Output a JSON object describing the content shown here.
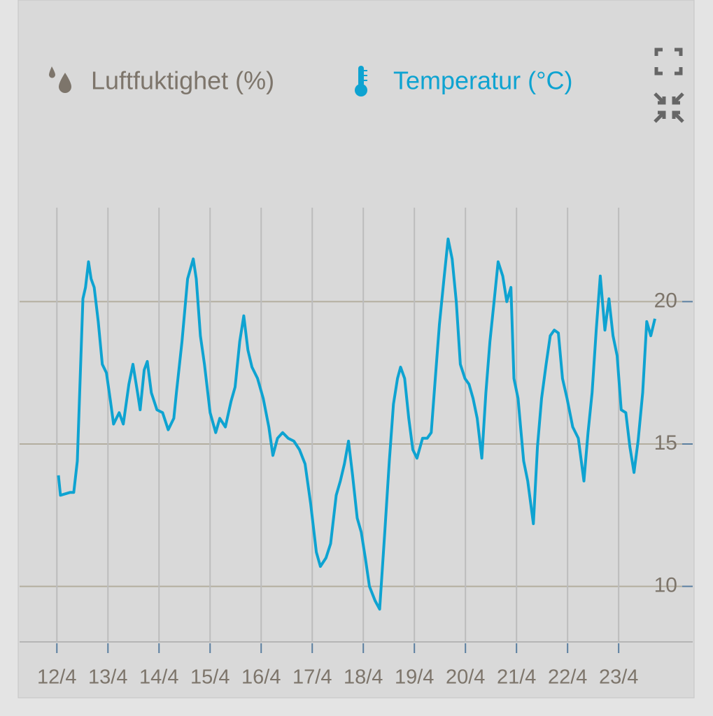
{
  "chart_data": {
    "type": "line",
    "xlim": [
      -0.73,
      12.45
    ],
    "ylim": [
      8.05,
      23.3
    ],
    "yticks": [
      10,
      15,
      20
    ],
    "xticks": [
      {
        "value": 0,
        "label": "12/4"
      },
      {
        "value": 1,
        "label": "13/4"
      },
      {
        "value": 2,
        "label": "14/4"
      },
      {
        "value": 3,
        "label": "15/4"
      },
      {
        "value": 4,
        "label": "16/4"
      },
      {
        "value": 5,
        "label": "17/4"
      },
      {
        "value": 6,
        "label": "18/4"
      },
      {
        "value": 7,
        "label": "19/4"
      },
      {
        "value": 8,
        "label": "20/4"
      },
      {
        "value": 9,
        "label": "21/4"
      },
      {
        "value": 10,
        "label": "22/4"
      },
      {
        "value": 11,
        "label": "23/4"
      }
    ],
    "grid": true,
    "x": [
      0.03,
      0.07,
      0.26,
      0.33,
      0.4,
      0.51,
      0.56,
      0.62,
      0.67,
      0.73,
      0.81,
      0.89,
      0.97,
      1.05,
      1.11,
      1.22,
      1.3,
      1.41,
      1.49,
      1.58,
      1.63,
      1.71,
      1.77,
      1.85,
      1.96,
      2.07,
      2.18,
      2.29,
      2.34,
      2.45,
      2.56,
      2.67,
      2.73,
      2.81,
      2.89,
      3.0,
      3.11,
      3.19,
      3.3,
      3.41,
      3.49,
      3.58,
      3.66,
      3.74,
      3.82,
      3.93,
      4.04,
      4.15,
      4.23,
      4.32,
      4.42,
      4.53,
      4.64,
      4.75,
      4.86,
      4.97,
      5.08,
      5.16,
      5.27,
      5.36,
      5.47,
      5.55,
      5.63,
      5.71,
      5.79,
      5.88,
      5.96,
      6.04,
      6.12,
      6.23,
      6.32,
      6.42,
      6.51,
      6.59,
      6.67,
      6.73,
      6.81,
      6.89,
      6.97,
      7.05,
      7.16,
      7.25,
      7.33,
      7.41,
      7.49,
      7.58,
      7.66,
      7.74,
      7.82,
      7.9,
      7.99,
      8.07,
      8.15,
      8.23,
      8.32,
      8.4,
      8.48,
      8.56,
      8.64,
      8.73,
      8.81,
      8.89,
      8.95,
      9.03,
      9.08,
      9.14,
      9.22,
      9.33,
      9.41,
      9.49,
      9.58,
      9.66,
      9.74,
      9.82,
      9.9,
      9.99,
      10.1,
      10.21,
      10.32,
      10.4,
      10.48,
      10.56,
      10.64,
      10.73,
      10.81,
      10.89,
      10.97,
      11.05,
      11.14,
      11.22,
      11.3,
      11.38,
      11.47,
      11.55,
      11.63,
      11.71
    ],
    "series": [
      {
        "name": "Luftfuktighet (%)",
        "color": "#7d756b",
        "visible": false
      },
      {
        "name": "Temperatur (°C)",
        "color": "#0ea3d1",
        "visible": true,
        "values": [
          13.9,
          13.2,
          13.3,
          13.3,
          14.4,
          20.1,
          20.5,
          21.4,
          20.8,
          20.5,
          19.3,
          17.8,
          17.5,
          16.5,
          15.7,
          16.1,
          15.7,
          17.1,
          17.8,
          16.8,
          16.2,
          17.6,
          17.9,
          16.8,
          16.2,
          16.1,
          15.5,
          15.9,
          16.8,
          18.6,
          20.8,
          21.5,
          20.8,
          18.8,
          17.8,
          16.1,
          15.4,
          15.9,
          15.6,
          16.5,
          17.0,
          18.6,
          19.5,
          18.3,
          17.7,
          17.3,
          16.6,
          15.6,
          14.6,
          15.2,
          15.4,
          15.2,
          15.1,
          14.8,
          14.3,
          12.9,
          11.2,
          10.7,
          11.0,
          11.5,
          13.2,
          13.7,
          14.3,
          15.1,
          13.9,
          12.4,
          11.9,
          11.0,
          10.0,
          9.5,
          9.2,
          11.9,
          14.4,
          16.4,
          17.3,
          17.7,
          17.3,
          15.9,
          14.8,
          14.5,
          15.2,
          15.2,
          15.4,
          17.3,
          19.2,
          20.8,
          22.2,
          21.5,
          20.0,
          17.8,
          17.3,
          17.1,
          16.6,
          15.9,
          14.5,
          16.8,
          18.6,
          20.0,
          21.4,
          20.9,
          20.0,
          20.5,
          17.3,
          16.6,
          15.6,
          14.4,
          13.7,
          12.2,
          14.9,
          16.6,
          17.8,
          18.8,
          19.0,
          18.9,
          17.3,
          16.6,
          15.6,
          15.2,
          13.7,
          15.4,
          16.8,
          19.0,
          20.9,
          19.0,
          20.1,
          18.8,
          18.1,
          16.2,
          16.1,
          14.9,
          14.0,
          15.1,
          16.8,
          19.3,
          18.8,
          19.4
        ]
      }
    ]
  }
}
